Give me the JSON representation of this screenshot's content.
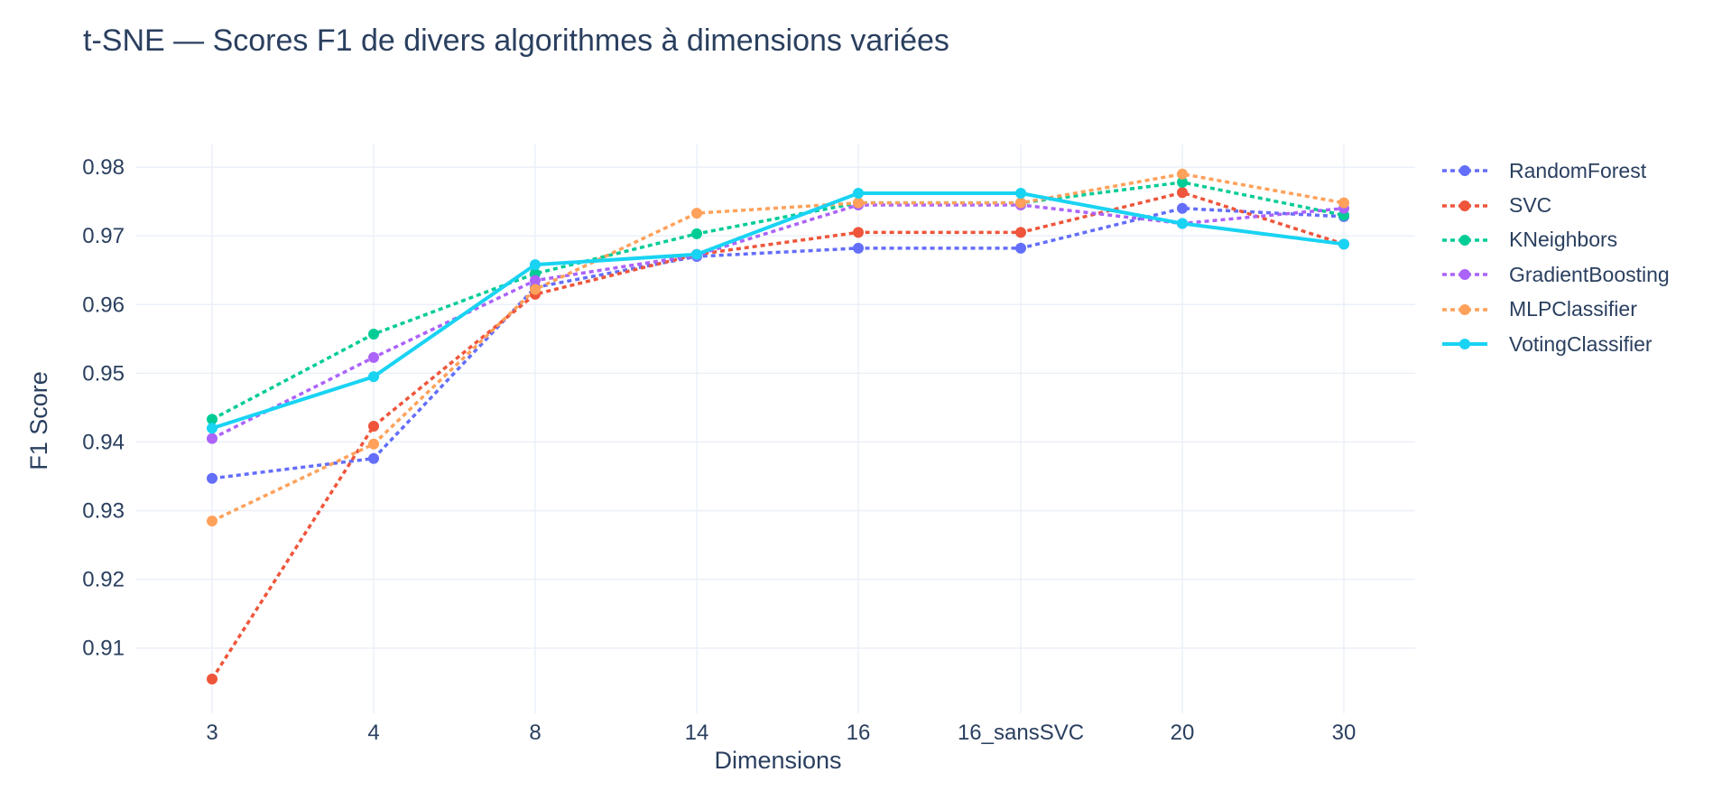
{
  "chart_data": {
    "type": "line",
    "title": "t-SNE — Scores F1 de divers algorithmes à dimensions variées",
    "xlabel": "Dimensions",
    "ylabel": "F1 Score",
    "categories": [
      "3",
      "4",
      "8",
      "14",
      "16",
      "16_sansSVC",
      "20",
      "30"
    ],
    "ylim": [
      0.9005,
      0.9833
    ],
    "yticks": [
      0.91,
      0.92,
      0.93,
      0.94,
      0.95,
      0.96,
      0.97,
      0.98
    ],
    "ytick_labels": [
      "0.91",
      "0.92",
      "0.93",
      "0.94",
      "0.95",
      "0.96",
      "0.97",
      "0.98"
    ],
    "grid": true,
    "legend_position": "right",
    "series": [
      {
        "name": "RandomForest",
        "color": "#636efa",
        "dash": true,
        "values": [
          0.9347,
          0.9376,
          0.9625,
          0.967,
          0.9682,
          0.9682,
          0.974,
          0.9728
        ]
      },
      {
        "name": "SVC",
        "color": "#ef553b",
        "dash": true,
        "values": [
          0.9055,
          0.9423,
          0.9615,
          0.9673,
          0.9705,
          0.9705,
          0.9763,
          0.9688
        ]
      },
      {
        "name": "KNeighbors",
        "color": "#00cc96",
        "dash": true,
        "values": [
          0.9433,
          0.9557,
          0.9645,
          0.9703,
          0.9748,
          0.9748,
          0.9778,
          0.973
        ]
      },
      {
        "name": "GradientBoosting",
        "color": "#ab63fa",
        "dash": true,
        "values": [
          0.9405,
          0.9523,
          0.9635,
          0.9672,
          0.9745,
          0.9745,
          0.9718,
          0.974
        ]
      },
      {
        "name": "MLPClassifier",
        "color": "#ffa15a",
        "dash": true,
        "values": [
          0.9285,
          0.9397,
          0.9622,
          0.9733,
          0.9748,
          0.9748,
          0.979,
          0.9748
        ]
      },
      {
        "name": "VotingClassifier",
        "color": "#19d3f3",
        "dash": false,
        "values": [
          0.942,
          0.9495,
          0.9658,
          0.9673,
          0.9762,
          0.9762,
          0.9718,
          0.9688
        ]
      }
    ]
  }
}
